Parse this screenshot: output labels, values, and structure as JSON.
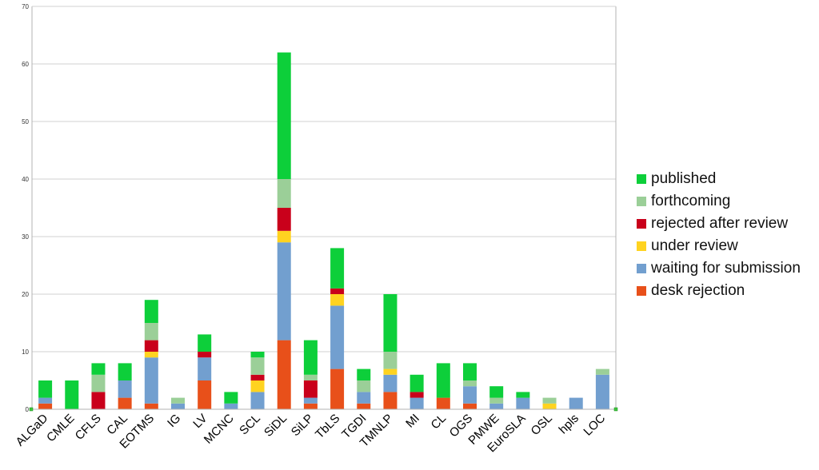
{
  "chart_data": {
    "type": "bar",
    "stacked": true,
    "categories": [
      "ALGaD",
      "CMLE",
      "CFLS",
      "CAL",
      "EOTMS",
      "IG",
      "LV",
      "MCNC",
      "SCL",
      "SiDL",
      "SiLP",
      "TbLS",
      "TGDI",
      "TMNLP",
      "MI",
      "CL",
      "OGS",
      "PMWE",
      "EuroSLA",
      "OSL",
      "hpls",
      "LOC"
    ],
    "series": [
      {
        "name": "desk rejection",
        "color": "#e8501a",
        "values": [
          1,
          0,
          0,
          2,
          1,
          0,
          5,
          0,
          0,
          12,
          1,
          7,
          1,
          3,
          0,
          2,
          1,
          0,
          0,
          0,
          0,
          0
        ]
      },
      {
        "name": "waiting for submission",
        "color": "#729fcf",
        "values": [
          1,
          0,
          0,
          3,
          8,
          1,
          4,
          1,
          3,
          17,
          1,
          11,
          2,
          3,
          2,
          0,
          3,
          1,
          2,
          0,
          2,
          6
        ]
      },
      {
        "name": "under review",
        "color": "#ffd320",
        "values": [
          0,
          0,
          0,
          0,
          1,
          0,
          0,
          0,
          2,
          2,
          0,
          2,
          0,
          1,
          0,
          0,
          0,
          0,
          0,
          1,
          0,
          0
        ]
      },
      {
        "name": "rejected after review",
        "color": "#c9001b",
        "values": [
          0,
          0,
          3,
          0,
          2,
          0,
          1,
          0,
          1,
          4,
          3,
          1,
          0,
          0,
          1,
          0,
          0,
          0,
          0,
          0,
          0,
          0
        ]
      },
      {
        "name": "forthcoming",
        "color": "#9bcf98",
        "values": [
          0,
          0,
          3,
          0,
          3,
          1,
          0,
          0,
          3,
          5,
          1,
          0,
          2,
          3,
          0,
          0,
          1,
          1,
          0,
          1,
          0,
          1
        ]
      },
      {
        "name": "published",
        "color": "#0dcf3a",
        "values": [
          3,
          5,
          2,
          3,
          4,
          0,
          3,
          2,
          1,
          22,
          6,
          7,
          2,
          10,
          3,
          6,
          3,
          2,
          1,
          0,
          0,
          0
        ]
      }
    ],
    "legend_order": [
      "published",
      "forthcoming",
      "rejected after review",
      "under review",
      "waiting for submission",
      "desk rejection"
    ],
    "ylim": [
      0,
      70
    ],
    "yticks": [
      0,
      10,
      20,
      30,
      40,
      50,
      60,
      70
    ],
    "grid": true,
    "legend_position": "right"
  }
}
